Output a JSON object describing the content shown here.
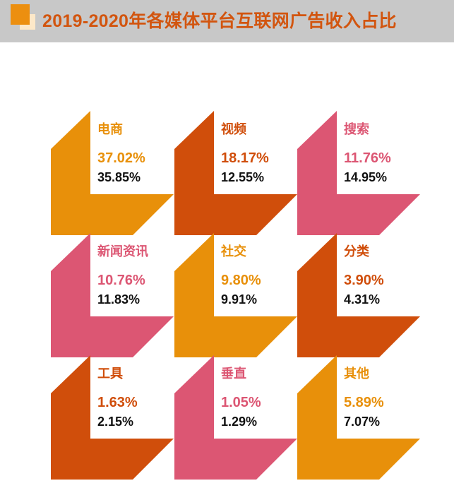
{
  "title": "2019-2020年各媒体平台互联网广告收入占比",
  "colors": {
    "orange": "#e8900a",
    "dark_orange": "#d04e0b",
    "pink": "#dc5673",
    "title": "#d2550f"
  },
  "tiles": [
    {
      "name": "电商",
      "value_top": "37.02%",
      "value_bottom": "35.85%",
      "color": "#e8900a"
    },
    {
      "name": "视频",
      "value_top": "18.17%",
      "value_bottom": "12.55%",
      "color": "#d04e0b"
    },
    {
      "name": "搜索",
      "value_top": "11.76%",
      "value_bottom": "14.95%",
      "color": "#dc5673"
    },
    {
      "name": "新闻资讯",
      "value_top": "10.76%",
      "value_bottom": "11.83%",
      "color": "#dc5673"
    },
    {
      "name": "社交",
      "value_top": "9.80%",
      "value_bottom": "9.91%",
      "color": "#e8900a"
    },
    {
      "name": "分类",
      "value_top": "3.90%",
      "value_bottom": "4.31%",
      "color": "#d04e0b"
    },
    {
      "name": "工具",
      "value_top": "1.63%",
      "value_bottom": "2.15%",
      "color": "#d04e0b"
    },
    {
      "name": "垂直",
      "value_top": "1.05%",
      "value_bottom": "1.29%",
      "color": "#dc5673"
    },
    {
      "name": "其他",
      "value_top": "5.89%",
      "value_bottom": "7.07%",
      "color": "#e8900a"
    }
  ]
}
